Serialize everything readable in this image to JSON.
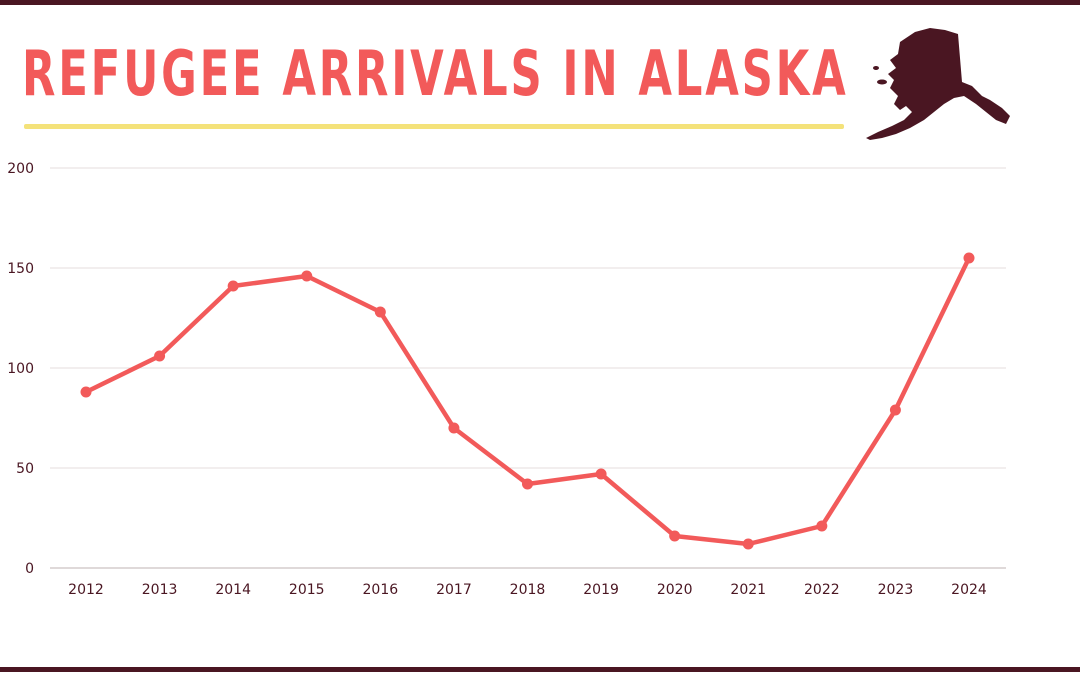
{
  "title": "REFUGEE ARRIVALS IN ALASKA",
  "colors": {
    "line": "#f25a5a",
    "text": "#4a1622",
    "underline": "#f4e27a",
    "grid": "#e6dede",
    "state": "#4a1622"
  },
  "icons": {
    "state": "alaska-map-icon"
  },
  "chart_data": {
    "type": "line",
    "title": "REFUGEE ARRIVALS IN ALASKA",
    "xlabel": "",
    "ylabel": "",
    "categories": [
      "2012",
      "2013",
      "2014",
      "2015",
      "2016",
      "2017",
      "2018",
      "2019",
      "2020",
      "2021",
      "2022",
      "2023",
      "2024"
    ],
    "values": [
      88,
      106,
      141,
      146,
      128,
      70,
      42,
      47,
      16,
      12,
      21,
      79,
      155
    ],
    "ylim": [
      0,
      200
    ],
    "yticks": [
      0,
      50,
      100,
      150,
      200
    ],
    "grid": true,
    "legend": "none"
  }
}
